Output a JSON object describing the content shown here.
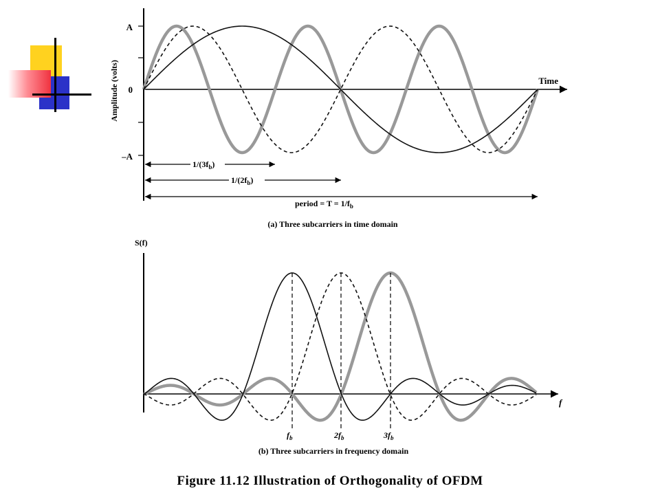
{
  "figure": {
    "title": "Figure 11.12  Illustration of Orthogonality of OFDM"
  },
  "panel_a": {
    "caption": "(a) Three subcarriers in time domain",
    "y_axis_label": "Amplitude (volts)",
    "x_axis_label": "Time",
    "tick_A": "A",
    "tick_zero": "0",
    "tick_neg_A": "–A",
    "span_1": "1/(3f",
    "span_2": "1/(2f",
    "span_3": "period = T = 1/f",
    "sub_b": "b",
    "close_paren": ")"
  },
  "panel_b": {
    "caption": "(b) Three subcarriers in frequency domain",
    "y_axis_label": "S(f)",
    "x_axis_label": "f",
    "tick_1": "f",
    "tick_2_prefix": "2f",
    "tick_3_prefix": "3f",
    "sub_b": "b"
  },
  "colors": {
    "grey_curve": "#999999",
    "black_curve": "#111111",
    "logo_yellow": "#ffd21f",
    "logo_blue": "#2b32c8",
    "logo_red": "#f0323f"
  },
  "chart_data": [
    {
      "type": "line",
      "title": "(a) Three subcarriers in time domain",
      "xlabel": "Time",
      "ylabel": "Amplitude (volts)",
      "x_range_periods": [
        0,
        1
      ],
      "y_range": [
        "-A",
        "A"
      ],
      "series": [
        {
          "style": "solid black thin",
          "frequency_multiple": 1,
          "function": "A sin(2π f_b t)"
        },
        {
          "style": "dashed black",
          "frequency_multiple": 2,
          "function": "A sin(2π 2f_b t)"
        },
        {
          "style": "solid grey thick",
          "frequency_multiple": 3,
          "function": "A sin(2π 3f_b t)"
        }
      ]
    },
    {
      "type": "line",
      "title": "(b) Three subcarriers in frequency domain",
      "xlabel": "f",
      "ylabel": "S(f)",
      "categories": [
        "f_b",
        "2f_b",
        "3f_b"
      ],
      "series": [
        {
          "style": "solid black thin",
          "center": "f_b",
          "shape": "sinc"
        },
        {
          "style": "dashed black",
          "center": "2f_b",
          "shape": "sinc"
        },
        {
          "style": "solid grey thick",
          "center": "3f_b",
          "shape": "sinc"
        }
      ]
    }
  ]
}
